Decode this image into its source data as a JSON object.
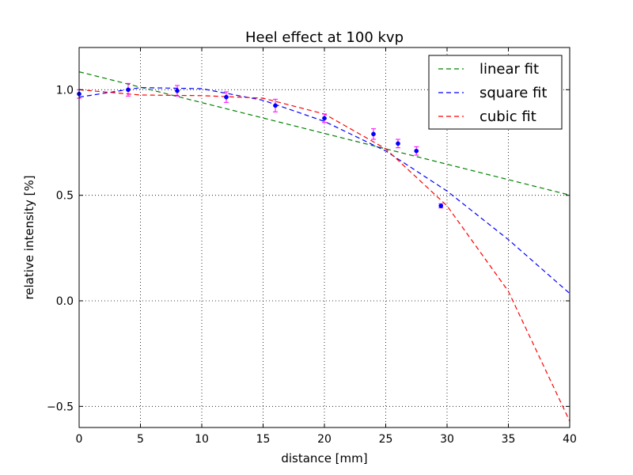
{
  "chart_data": {
    "type": "scatter",
    "title": "Heel effect at 100 kvp",
    "xlabel": "distance [mm]",
    "ylabel": "relative intensity [%]",
    "xlim": [
      0,
      40
    ],
    "ylim": [
      -0.6,
      1.2
    ],
    "xticks": [
      0,
      5,
      10,
      15,
      20,
      25,
      30,
      35,
      40
    ],
    "xtick_labels": [
      "0",
      "5",
      "10",
      "15",
      "20",
      "25",
      "30",
      "35",
      "40"
    ],
    "yticks": [
      -0.5,
      0.0,
      0.5,
      1.0
    ],
    "ytick_labels": [
      "−0.5",
      "0.0",
      "0.5",
      "1.0"
    ],
    "grid": true,
    "legend_position": "top-right",
    "measurements": {
      "color": "#0000ff",
      "error_color": "#ff00ff",
      "x": [
        0,
        4,
        8,
        12,
        16,
        20,
        24,
        26,
        27.5,
        29.5
      ],
      "y": [
        0.98,
        1.0,
        0.995,
        0.965,
        0.925,
        0.865,
        0.79,
        0.745,
        0.71,
        0.45
      ],
      "err": [
        0.02,
        0.03,
        0.025,
        0.025,
        0.03,
        0.02,
        0.025,
        0.02,
        0.02,
        0.01
      ]
    },
    "series": [
      {
        "name": "linear fit",
        "color": "#008000",
        "style": "dashed",
        "x": [
          0,
          5,
          10,
          15,
          20,
          25,
          30,
          35,
          40
        ],
        "y": [
          1.085,
          1.012,
          0.939,
          0.866,
          0.793,
          0.72,
          0.647,
          0.574,
          0.501
        ]
      },
      {
        "name": "square fit",
        "color": "#0000ff",
        "style": "dashed",
        "x": [
          0,
          5,
          10,
          15,
          20,
          25,
          30,
          35,
          40
        ],
        "y": [
          0.965,
          1.01,
          1.005,
          0.95,
          0.85,
          0.71,
          0.52,
          0.29,
          0.035
        ]
      },
      {
        "name": "cubic fit",
        "color": "#ff0000",
        "style": "dashed",
        "x": [
          0,
          5,
          10,
          15,
          20,
          25,
          30,
          35,
          40
        ],
        "y": [
          1.0,
          0.975,
          0.972,
          0.96,
          0.885,
          0.72,
          0.45,
          0.045,
          -0.57
        ]
      }
    ]
  }
}
